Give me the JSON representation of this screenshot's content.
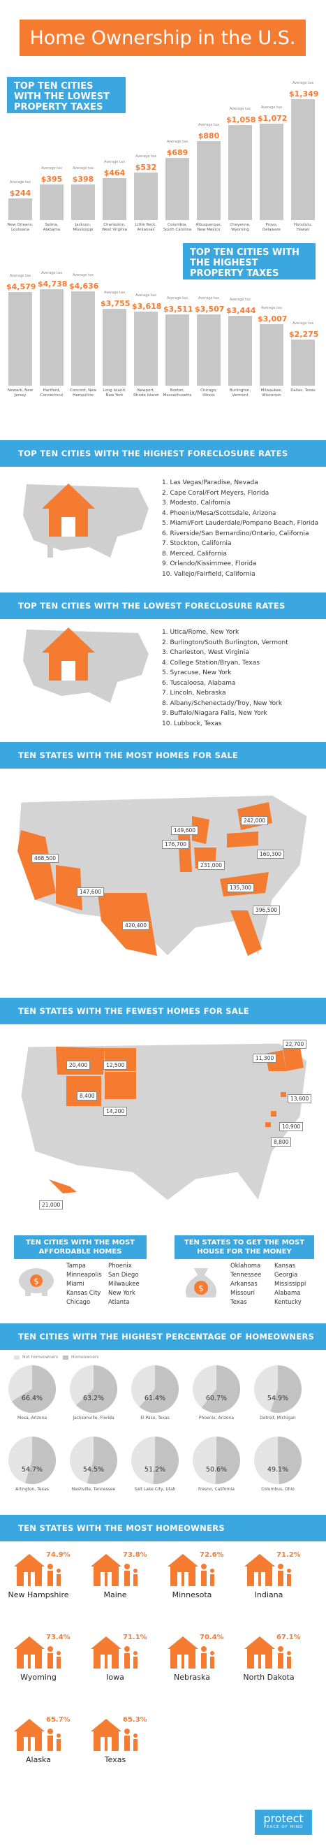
{
  "title": "Home Ownership in the U.S.",
  "colors": {
    "accent": "#f47b30",
    "blue": "#3aa7e0",
    "gray": "#c7c7c7"
  },
  "lowest_taxes": {
    "heading": "TOP TEN CITIES WITH THE LOWEST PROPERTY TAXES",
    "caption": "Average tax",
    "items": [
      {
        "city": "New Orleans, Louisiana",
        "value": "$244"
      },
      {
        "city": "Selma, Alabama",
        "value": "$395"
      },
      {
        "city": "Jackson, Mississippi",
        "value": "$398"
      },
      {
        "city": "Charleston, West Virginia",
        "value": "$464"
      },
      {
        "city": "Little Rock, Arkansas",
        "value": "$532"
      },
      {
        "city": "Columbia, South Carolina",
        "value": "$689"
      },
      {
        "city": "Albuquerque, New Mexico",
        "value": "$880"
      },
      {
        "city": "Cheyenne, Wyoming",
        "value": "$1,058"
      },
      {
        "city": "Provo, Delaware",
        "value": "$1,072"
      },
      {
        "city": "Honolulu, Hawaii",
        "value": "$1,349"
      }
    ]
  },
  "highest_taxes": {
    "heading": "TOP TEN CITIES WITH THE HIGHEST PROPERTY TAXES",
    "caption": "Average tax",
    "items": [
      {
        "city": "Newark, New Jersey",
        "value": "$4,579"
      },
      {
        "city": "Hartford, Connecticut",
        "value": "$4,738"
      },
      {
        "city": "Concord, New Hampshire",
        "value": "$4,636"
      },
      {
        "city": "Long Island, New York",
        "value": "$3,755"
      },
      {
        "city": "Newport, Rhode Island",
        "value": "$3,618"
      },
      {
        "city": "Boston, Massachusetts",
        "value": "$3,511"
      },
      {
        "city": "Chicago, Illinois",
        "value": "$3,507"
      },
      {
        "city": "Burlington, Vermont",
        "value": "$3,444"
      },
      {
        "city": "Milwaukee, Wisconsin",
        "value": "$3,007"
      },
      {
        "city": "Dallas, Texas",
        "value": "$2,275"
      }
    ]
  },
  "highest_foreclosure": {
    "heading": "TOP TEN CITIES WITH THE HIGHEST FORECLOSURE RATES",
    "items": [
      "1. Las Vegas/Paradise, Nevada",
      "2. Cape Coral/Fort Meyers, Florida",
      "3. Modesto, California",
      "4. Phoenix/Mesa/Scottsdale, Arizona",
      "5. Miami/Fort Lauderdale/Pompano Beach, Florida",
      "6. Riverside/San Bernardino/Ontario, California",
      "7. Stockton, California",
      "8. Merced, California",
      "9. Orlando/Kissimmee, Florida",
      "10. Vallejo/Fairfield, California"
    ]
  },
  "lowest_foreclosure": {
    "heading": "TOP TEN CITIES WITH THE LOWEST FORECLOSURE RATES",
    "items": [
      "1. Utica/Rome, New York",
      "2. Burlington/South Burlington, Vermont",
      "3. Charleston, West Virginia",
      "4. College Station/Bryan, Texas",
      "5. Syracuse, New York",
      "6. Tuscaloosa, Alabama",
      "7. Lincoln, Nebraska",
      "8. Albany/Schenectady/Troy, New York",
      "9. Buffalo/Niagara Falls, New York",
      "10. Lubbock, Texas"
    ]
  },
  "most_homes": {
    "heading": "TEN STATES WITH THE MOST HOMES FOR SALE",
    "labels": [
      {
        "state": "CA",
        "value": "468,500"
      },
      {
        "state": "AZ",
        "value": "147,600"
      },
      {
        "state": "TX",
        "value": "420,400"
      },
      {
        "state": "IL",
        "value": "176,700"
      },
      {
        "state": "MI",
        "value": "149,600"
      },
      {
        "state": "OH",
        "value": "231,000"
      },
      {
        "state": "NY",
        "value": "242,000"
      },
      {
        "state": "PA",
        "value": "160,300"
      },
      {
        "state": "NC",
        "value": "135,300"
      },
      {
        "state": "FL",
        "value": "396,500"
      }
    ]
  },
  "fewest_homes": {
    "heading": "TEN STATES WITH THE FEWEST HOMES FOR SALE",
    "labels": [
      {
        "state": "MT",
        "value": "20,400"
      },
      {
        "state": "ND",
        "value": "12,500"
      },
      {
        "state": "WY",
        "value": "8,400"
      },
      {
        "state": "SD",
        "value": "14,200"
      },
      {
        "state": "VT",
        "value": "11,300"
      },
      {
        "state": "ME",
        "value": "22,700"
      },
      {
        "state": "RI",
        "value": "13,600"
      },
      {
        "state": "DE",
        "value": "10,900"
      },
      {
        "state": "DC",
        "value": "8,800"
      },
      {
        "state": "HI",
        "value": "21,000"
      }
    ]
  },
  "affordable": {
    "heading": "TEN CITIES WITH THE MOST AFFORDABLE HOMES",
    "col1": [
      "Tampa",
      "Minneapolis",
      "Miami",
      "Kansas City",
      "Chicago"
    ],
    "col2": [
      "Phoenix",
      "San Diego",
      "Milwaukee",
      "New York",
      "Atlanta"
    ]
  },
  "most_house": {
    "heading": "TEN STATES TO GET THE MOST HOUSE FOR THE MONEY",
    "col1": [
      "Oklahoma",
      "Tennessee",
      "Arkansas",
      "Missouri",
      "Texas"
    ],
    "col2": [
      "Kansas",
      "Georgia",
      "Mississippi",
      "Alabama",
      "Kentucky"
    ]
  },
  "pct_homeowners": {
    "heading": "TEN CITIES WITH THE HIGHEST PERCENTAGE OF HOMEOWNERS",
    "legend_not": "Not homeowners",
    "legend_yes": "Homeowners",
    "items": [
      {
        "city": "Mesa, Arizona",
        "pct": "66.4%",
        "v": 66.4
      },
      {
        "city": "Jacksonville, Florida",
        "pct": "63.2%",
        "v": 63.2
      },
      {
        "city": "El Paso, Texas",
        "pct": "61.4%",
        "v": 61.4
      },
      {
        "city": "Phoenix, Arizona",
        "pct": "60.7%",
        "v": 60.7
      },
      {
        "city": "Detroit, Michigan",
        "pct": "54.9%",
        "v": 54.9
      },
      {
        "city": "Arlington, Texas",
        "pct": "54.7%",
        "v": 54.7
      },
      {
        "city": "Nashville, Tennessee",
        "pct": "54.5%",
        "v": 54.5
      },
      {
        "city": "Salt Lake City, Utah",
        "pct": "51.2%",
        "v": 51.2
      },
      {
        "city": "Fresno, California",
        "pct": "50.6%",
        "v": 50.6
      },
      {
        "city": "Columbus, Ohio",
        "pct": "49.1%",
        "v": 49.1
      }
    ]
  },
  "most_homeowners": {
    "heading": "TEN STATES WITH THE MOST HOMEOWNERS",
    "items": [
      {
        "state": "New Hampshire",
        "pct": "74.9%"
      },
      {
        "state": "Maine",
        "pct": "73.8%"
      },
      {
        "state": "Minnesota",
        "pct": "72.6%"
      },
      {
        "state": "Indiana",
        "pct": "71.2%"
      },
      {
        "state": "Wyoming",
        "pct": "73.4%"
      },
      {
        "state": "Iowa",
        "pct": "71.1%"
      },
      {
        "state": "Nebraska",
        "pct": "70.4%"
      },
      {
        "state": "North Dakota",
        "pct": "67.1%"
      },
      {
        "state": "Alaska",
        "pct": "65.7%"
      },
      {
        "state": "Texas",
        "pct": "65.3%"
      }
    ]
  },
  "footer": {
    "brand": "protect",
    "tagline": "PEACE OF MIND"
  }
}
